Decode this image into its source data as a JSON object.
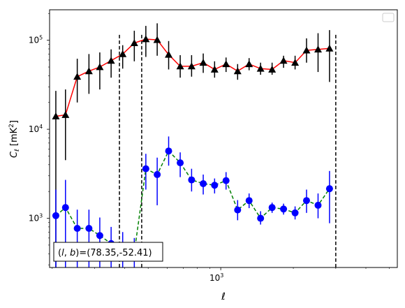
{
  "chart_data": {
    "type": "scatter",
    "title": "",
    "xlabel": "ℓ",
    "ylabel_main": "C",
    "ylabel_sub": "ℓ",
    "ylabel_unit_open": "[mK",
    "ylabel_unit_sup": "2",
    "ylabel_unit_close": "]",
    "xscale": "log",
    "yscale": "log",
    "xlim": [
      195,
      5400
    ],
    "ylim": [
      280,
      220000
    ],
    "x_ticks": [
      {
        "value": 1000,
        "base": "10",
        "exp": "3"
      }
    ],
    "y_ticks": [
      {
        "value": 1000,
        "base": "10",
        "exp": "3"
      },
      {
        "value": 10000,
        "base": "10",
        "exp": "4"
      },
      {
        "value": 100000,
        "base": "10",
        "exp": "5"
      }
    ],
    "legend": {
      "position": "top-right",
      "entries": []
    },
    "annotation": "(l, b)=(78.35,-52.41)",
    "annotation_parts": {
      "prefix": "(",
      "l": "l",
      "comma": ", ",
      "b": "b",
      "suffix": ")=(78.35,-52.41)"
    },
    "vlines": [
      380,
      470,
      3000
    ],
    "series": [
      {
        "color": "#ff0000",
        "marker": "triangle",
        "marker_color": "#000000",
        "errorbar_color": "#000000",
        "linestyle": "solid",
        "points": [
          {
            "x": 207,
            "y": 14000,
            "lo": 280,
            "hi": 27000
          },
          {
            "x": 227,
            "y": 14500,
            "lo": 4500,
            "hi": 28000
          },
          {
            "x": 254,
            "y": 39000,
            "lo": 20000,
            "hi": 62000
          },
          {
            "x": 284,
            "y": 45000,
            "lo": 25000,
            "hi": 70000
          },
          {
            "x": 315,
            "y": 50000,
            "lo": 28000,
            "hi": 73000
          },
          {
            "x": 351,
            "y": 59000,
            "lo": 38000,
            "hi": 79000
          },
          {
            "x": 392,
            "y": 70000,
            "lo": 48000,
            "hi": 88000
          },
          {
            "x": 438,
            "y": 93000,
            "lo": 58000,
            "hi": 128000
          },
          {
            "x": 489,
            "y": 103000,
            "lo": 65000,
            "hi": 145000
          },
          {
            "x": 545,
            "y": 101000,
            "lo": 67000,
            "hi": 155000
          },
          {
            "x": 608,
            "y": 69000,
            "lo": 47000,
            "hi": 98000
          },
          {
            "x": 679,
            "y": 51000,
            "lo": 38000,
            "hi": 68000
          },
          {
            "x": 757,
            "y": 51000,
            "lo": 39000,
            "hi": 68000
          },
          {
            "x": 846,
            "y": 56000,
            "lo": 43000,
            "hi": 71000
          },
          {
            "x": 943,
            "y": 47000,
            "lo": 38000,
            "hi": 58000
          },
          {
            "x": 1052,
            "y": 54000,
            "lo": 44000,
            "hi": 64000
          },
          {
            "x": 1175,
            "y": 45000,
            "lo": 36000,
            "hi": 54000
          },
          {
            "x": 1311,
            "y": 54000,
            "lo": 46000,
            "hi": 63000
          },
          {
            "x": 1463,
            "y": 48000,
            "lo": 41000,
            "hi": 56000
          },
          {
            "x": 1633,
            "y": 47000,
            "lo": 41000,
            "hi": 56000
          },
          {
            "x": 1822,
            "y": 59000,
            "lo": 49000,
            "hi": 67000
          },
          {
            "x": 2034,
            "y": 56000,
            "lo": 47000,
            "hi": 67000
          },
          {
            "x": 2269,
            "y": 77000,
            "lo": 56000,
            "hi": 105000
          },
          {
            "x": 2533,
            "y": 79000,
            "lo": 44000,
            "hi": 120000
          },
          {
            "x": 2826,
            "y": 81000,
            "lo": 34000,
            "hi": 130000
          }
        ]
      },
      {
        "color": "#008000",
        "marker": "circle",
        "marker_color": "#0000ff",
        "errorbar_color": "#0000ff",
        "linestyle": "dashed",
        "points": [
          {
            "x": 207,
            "y": 1070,
            "lo": 280,
            "hi": 2100
          },
          {
            "x": 227,
            "y": 1320,
            "lo": 280,
            "hi": 2700
          },
          {
            "x": 254,
            "y": 770,
            "lo": 280,
            "hi": 1250
          },
          {
            "x": 284,
            "y": 770,
            "lo": 280,
            "hi": 1250
          },
          {
            "x": 315,
            "y": 640,
            "lo": 280,
            "hi": 1020
          },
          {
            "x": 351,
            "y": 520,
            "lo": 280,
            "hi": 800
          },
          {
            "x": 392,
            "y": 460,
            "lo": 280,
            "hi": 700
          },
          {
            "x": 438,
            "y": 410,
            "lo": 280,
            "hi": 600
          },
          {
            "x": 489,
            "y": 3600,
            "lo": 2100,
            "hi": 5300
          },
          {
            "x": 545,
            "y": 3100,
            "lo": 1400,
            "hi": 4800
          },
          {
            "x": 608,
            "y": 5700,
            "lo": 3900,
            "hi": 8300
          },
          {
            "x": 679,
            "y": 4200,
            "lo": 2900,
            "hi": 5500
          },
          {
            "x": 757,
            "y": 2700,
            "lo": 2000,
            "hi": 3600
          },
          {
            "x": 846,
            "y": 2450,
            "lo": 1850,
            "hi": 3100
          },
          {
            "x": 943,
            "y": 2350,
            "lo": 1900,
            "hi": 2800
          },
          {
            "x": 1052,
            "y": 2650,
            "lo": 2100,
            "hi": 3300
          },
          {
            "x": 1175,
            "y": 1240,
            "lo": 950,
            "hi": 1600
          },
          {
            "x": 1311,
            "y": 1580,
            "lo": 1300,
            "hi": 1900
          },
          {
            "x": 1463,
            "y": 1000,
            "lo": 850,
            "hi": 1200
          },
          {
            "x": 1633,
            "y": 1320,
            "lo": 1150,
            "hi": 1500
          },
          {
            "x": 1822,
            "y": 1270,
            "lo": 1100,
            "hi": 1460
          },
          {
            "x": 2034,
            "y": 1150,
            "lo": 970,
            "hi": 1360
          },
          {
            "x": 2269,
            "y": 1580,
            "lo": 1150,
            "hi": 2100
          },
          {
            "x": 2533,
            "y": 1400,
            "lo": 1000,
            "hi": 1900
          },
          {
            "x": 2826,
            "y": 2150,
            "lo": 880,
            "hi": 3400
          }
        ]
      }
    ]
  }
}
